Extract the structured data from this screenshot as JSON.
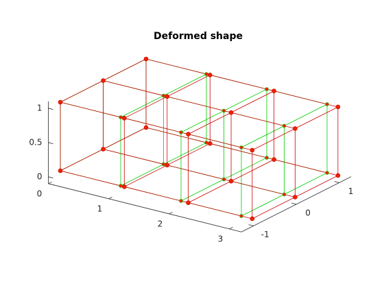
{
  "chart_data": {
    "type": "wireframe3d",
    "title": "Deformed shape",
    "xlim": [
      0,
      3.2
    ],
    "ylim": [
      -1.28,
      1.28
    ],
    "zlim": [
      -0.1,
      1.1
    ],
    "xticks": [
      0,
      1,
      2,
      3
    ],
    "yticks": [
      -1,
      0,
      1
    ],
    "zticks": [
      0,
      0.5,
      1
    ],
    "undeformed_color": "#00cc00",
    "deformed_color": "#cc0000",
    "marker_color": "#ee2200",
    "undeformed": [
      [
        0,
        -1,
        0
      ],
      [
        0,
        -1,
        1
      ],
      [
        0,
        0,
        0
      ],
      [
        0,
        0,
        1
      ],
      [
        0,
        1,
        0
      ],
      [
        0,
        1,
        1
      ],
      [
        1,
        -1,
        0
      ],
      [
        1,
        -1,
        1
      ],
      [
        1,
        0,
        0
      ],
      [
        1,
        0,
        1
      ],
      [
        1,
        1,
        0
      ],
      [
        1,
        1,
        1
      ],
      [
        2,
        -1,
        0
      ],
      [
        2,
        -1,
        1
      ],
      [
        2,
        0,
        0
      ],
      [
        2,
        0,
        1
      ],
      [
        2,
        1,
        0
      ],
      [
        2,
        1,
        1
      ],
      [
        3,
        -1,
        0
      ],
      [
        3,
        -1,
        1
      ],
      [
        3,
        0,
        0
      ],
      [
        3,
        0,
        1
      ],
      [
        3,
        1,
        0
      ],
      [
        3,
        1,
        1
      ]
    ],
    "deformed": [
      [
        0,
        -1,
        0
      ],
      [
        0,
        -1,
        1
      ],
      [
        0,
        0,
        0
      ],
      [
        0,
        0,
        1
      ],
      [
        0,
        1,
        0
      ],
      [
        0,
        1,
        1
      ],
      [
        1.06,
        -1,
        0
      ],
      [
        1.06,
        -1,
        1
      ],
      [
        1.06,
        0,
        0
      ],
      [
        1.06,
        0,
        1
      ],
      [
        1.06,
        1,
        0
      ],
      [
        1.06,
        1,
        1
      ],
      [
        2.12,
        -1,
        0
      ],
      [
        2.12,
        -1,
        1
      ],
      [
        2.12,
        0,
        0
      ],
      [
        2.12,
        0,
        1
      ],
      [
        2.12,
        1,
        0
      ],
      [
        2.12,
        1,
        1
      ],
      [
        3.18,
        -1,
        0
      ],
      [
        3.18,
        -1,
        1
      ],
      [
        3.18,
        0,
        0
      ],
      [
        3.18,
        0,
        1
      ],
      [
        3.18,
        1,
        0
      ],
      [
        3.18,
        1,
        1
      ]
    ]
  }
}
